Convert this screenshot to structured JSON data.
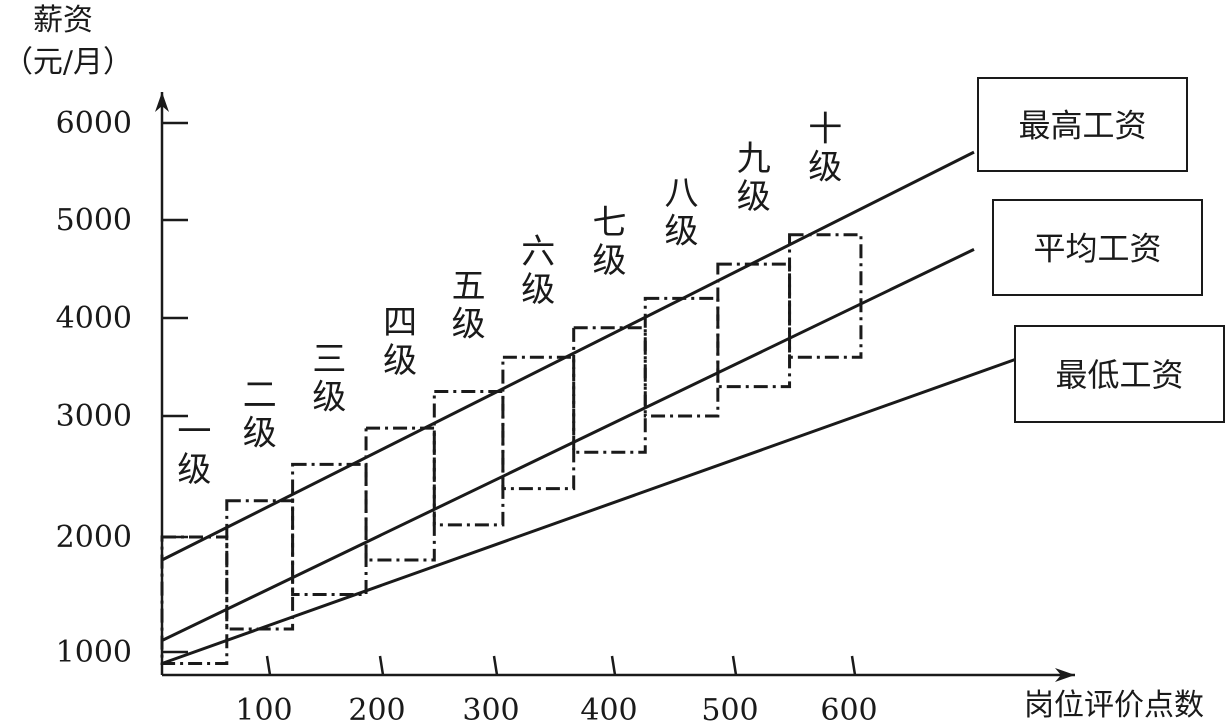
{
  "chart_data": {
    "type": "line",
    "ylabel_lines": [
      "薪资",
      "（元/月）"
    ],
    "xlabel": "岗位评价点数",
    "y_ticks": [
      1000,
      2000,
      3000,
      4000,
      5000,
      6000
    ],
    "x_ticks": [
      100,
      200,
      300,
      400,
      500,
      600
    ],
    "xlim": [
      0,
      800
    ],
    "ylim": [
      1000,
      6200
    ],
    "series": [
      {
        "name": "最高工资",
        "x": [
          0,
          700
        ],
        "values": [
          1800,
          5700
        ]
      },
      {
        "name": "平均工资",
        "x": [
          0,
          700
        ],
        "values": [
          1100,
          4700
        ]
      },
      {
        "name": "最低工资",
        "x": [
          0,
          740
        ],
        "values": [
          900,
          3600
        ]
      }
    ],
    "grades": [
      {
        "label": [
          "一",
          "级"
        ],
        "x_range": [
          0,
          60
        ],
        "y_range": [
          900,
          2000
        ]
      },
      {
        "label": [
          "二",
          "级"
        ],
        "x_range": [
          60,
          120
        ],
        "y_range": [
          1200,
          2300
        ]
      },
      {
        "label": [
          "三",
          "级"
        ],
        "x_range": [
          120,
          185
        ],
        "y_range": [
          1500,
          2600
        ]
      },
      {
        "label": [
          "四",
          "级"
        ],
        "x_range": [
          185,
          245
        ],
        "y_range": [
          1800,
          2900
        ]
      },
      {
        "label": [
          "五",
          "级"
        ],
        "x_range": [
          245,
          305
        ],
        "y_range": [
          2100,
          3250
        ]
      },
      {
        "label": [
          "六",
          "级"
        ],
        "x_range": [
          305,
          365
        ],
        "y_range": [
          2400,
          3600
        ]
      },
      {
        "label": [
          "七",
          "级"
        ],
        "x_range": [
          365,
          425
        ],
        "y_range": [
          2700,
          3900
        ]
      },
      {
        "label": [
          "八",
          "级"
        ],
        "x_range": [
          425,
          485
        ],
        "y_range": [
          3000,
          4200
        ]
      },
      {
        "label": [
          "九",
          "级"
        ],
        "x_range": [
          485,
          545
        ],
        "y_range": [
          3300,
          4550
        ]
      },
      {
        "label": [
          "十",
          "级"
        ],
        "x_range": [
          545,
          605
        ],
        "y_range": [
          3600,
          4850
        ]
      }
    ]
  }
}
